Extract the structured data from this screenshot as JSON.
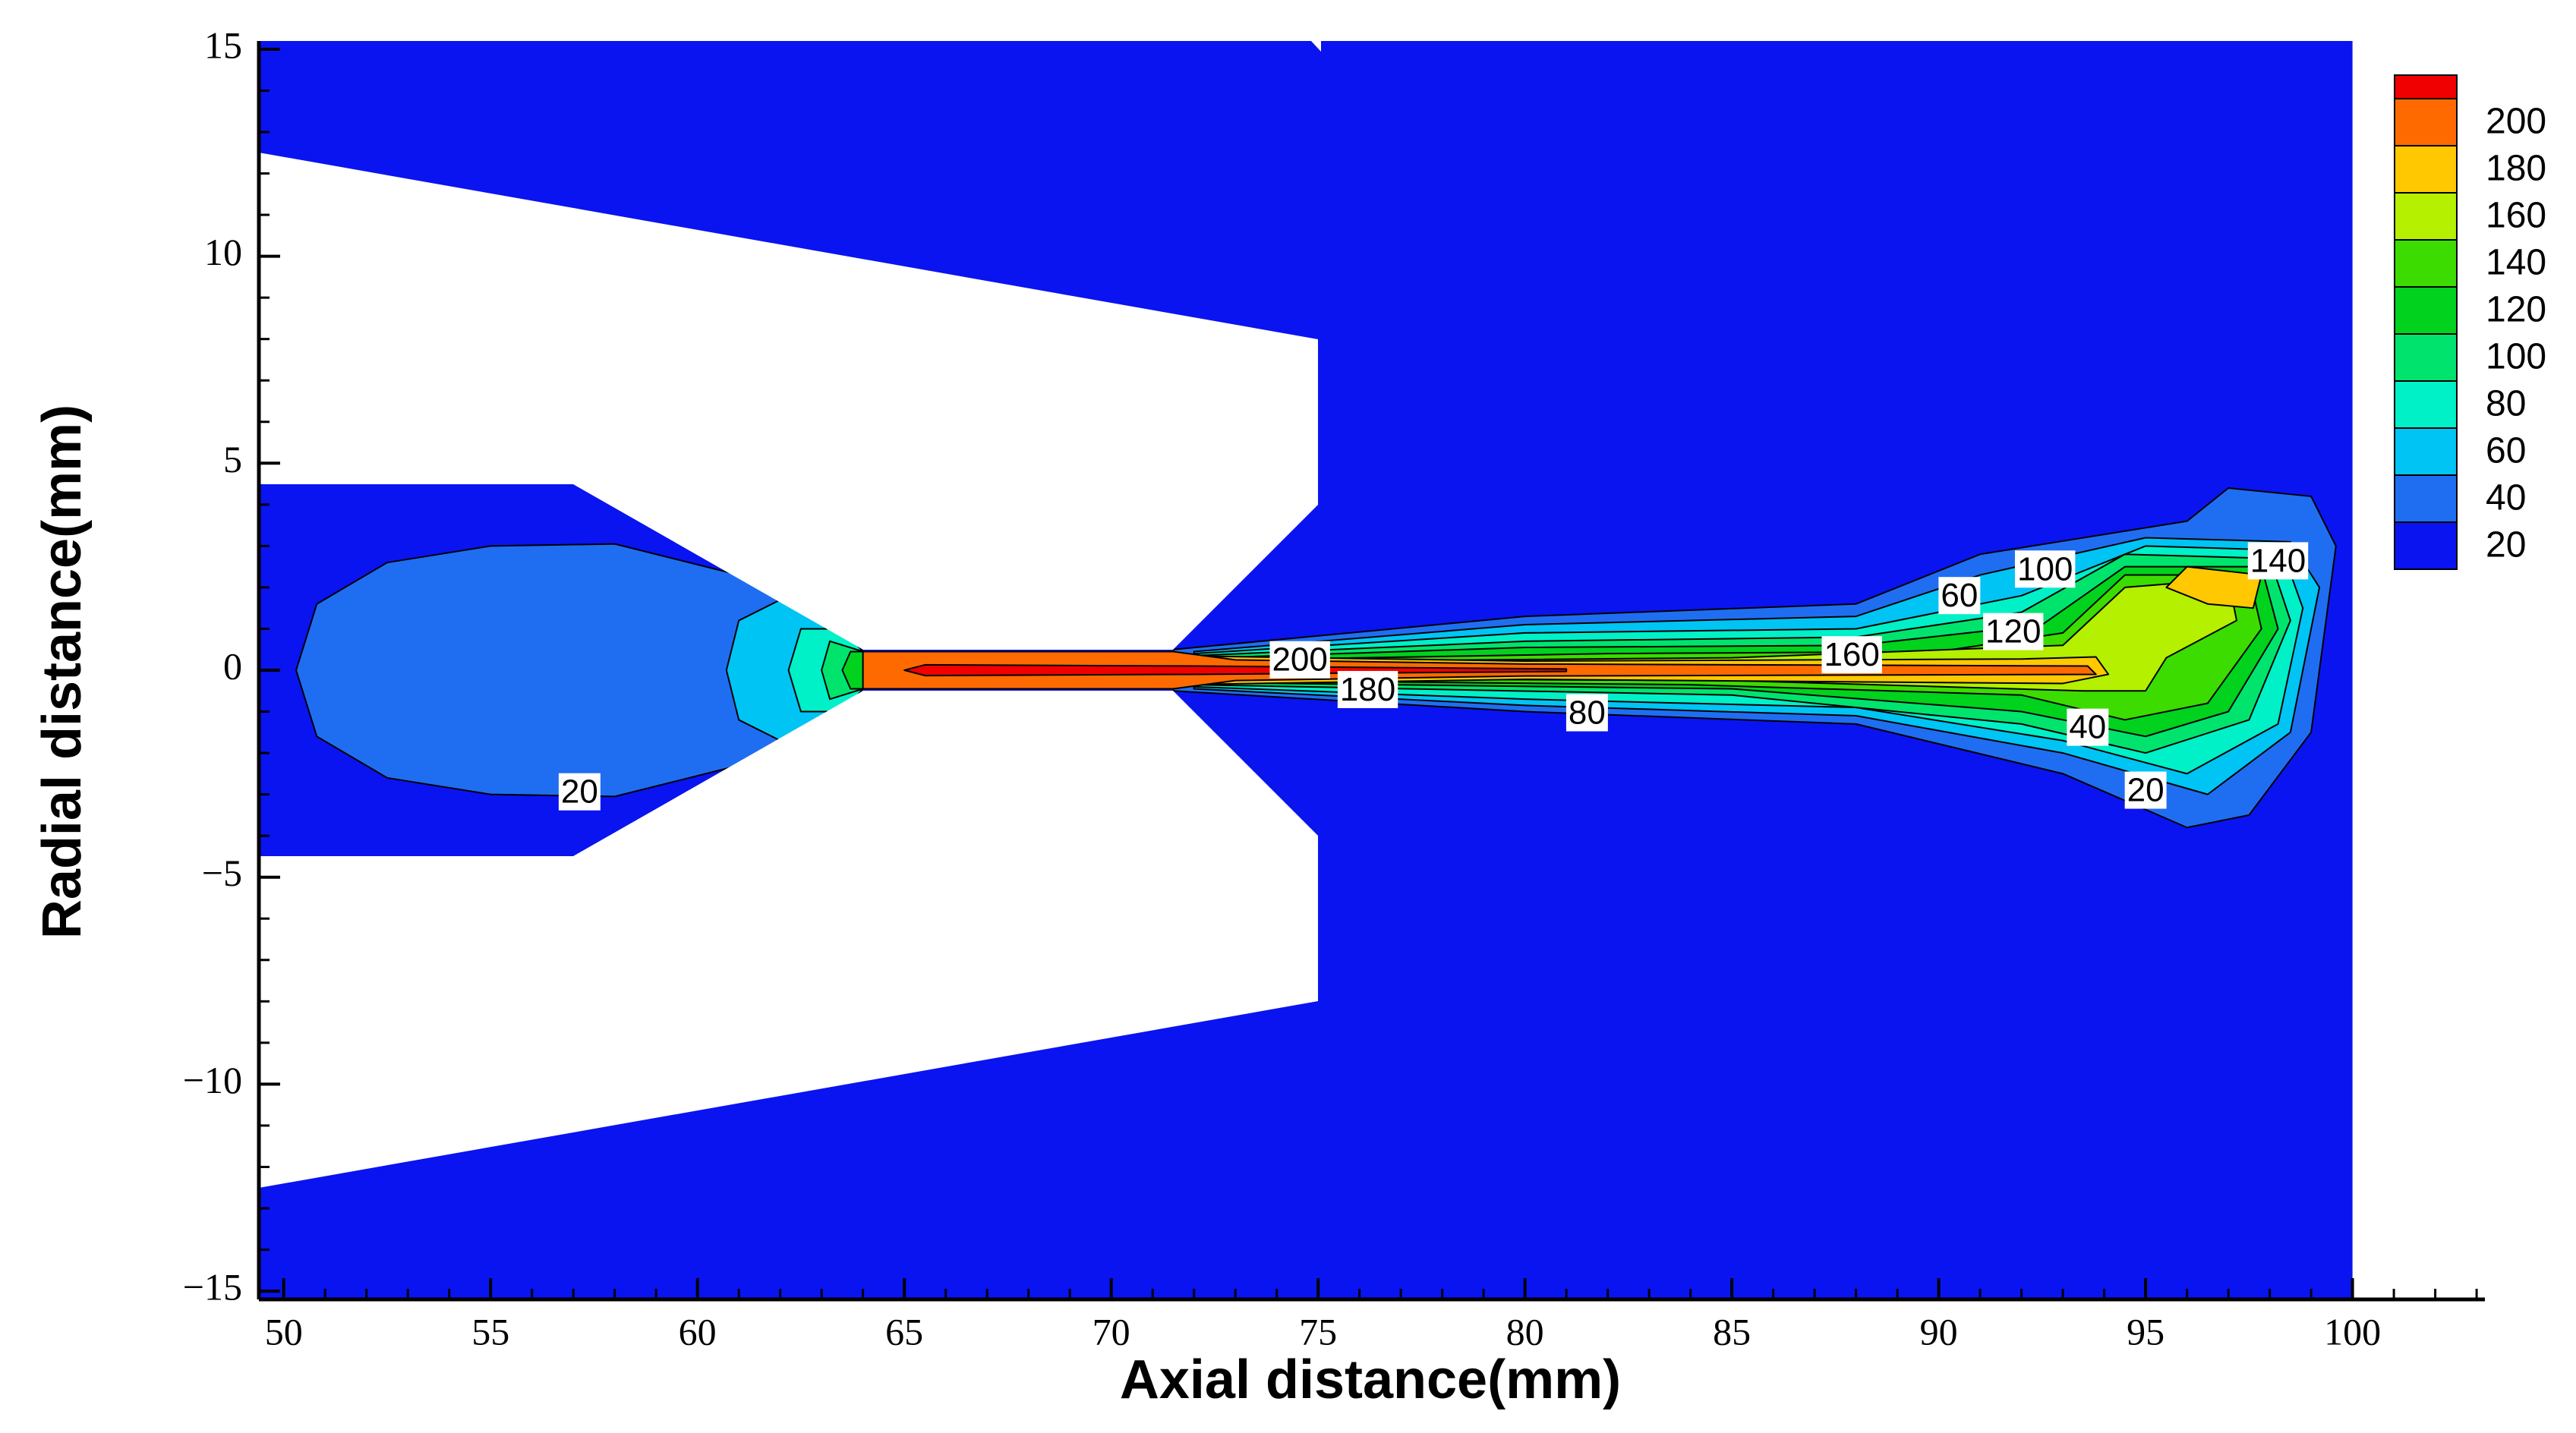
{
  "chart_data": {
    "type": "contour",
    "x_label": "Axial distance(mm)",
    "y_label": "Radial distance(mm)",
    "xlim": [
      49.4,
      103.2
    ],
    "ylim": [
      -15.2,
      15.2
    ],
    "xticks": [
      50,
      55,
      60,
      65,
      70,
      75,
      80,
      85,
      90,
      95,
      100
    ],
    "yticks": [
      {
        "value": -15,
        "label": "−15"
      },
      {
        "value": -10,
        "label": "−10"
      },
      {
        "value": -5,
        "label": "−5"
      },
      0,
      5,
      10,
      15
    ],
    "colorbar": {
      "levels": [
        20,
        40,
        60,
        80,
        100,
        120,
        140,
        160,
        180,
        200,
        null
      ],
      "colors": [
        "#0a14f0",
        "#1f6ef2",
        "#00c4f4",
        "#00f0c8",
        "#00e46e",
        "#00d21e",
        "#3cdc00",
        "#b4f000",
        "#ffc800",
        "#ff6a00",
        "#f00000"
      ]
    },
    "regions": [
      {
        "level": 20,
        "points": [
          [
            49.4,
            -15.2
          ],
          [
            100,
            -15.2
          ],
          [
            100,
            15.2
          ],
          [
            49.4,
            15.2
          ]
        ]
      },
      {
        "level": 40,
        "points": [
          [
            50.3,
            0
          ],
          [
            50.8,
            1.6
          ],
          [
            52.5,
            2.6
          ],
          [
            55,
            3
          ],
          [
            58,
            3.05
          ],
          [
            61,
            2.3
          ],
          [
            63,
            1
          ],
          [
            64,
            0.45
          ],
          [
            64,
            -0.45
          ],
          [
            63,
            -1
          ],
          [
            61,
            -2.3
          ],
          [
            58,
            -3.05
          ],
          [
            55,
            -3
          ],
          [
            52.5,
            -2.6
          ],
          [
            50.8,
            -1.6
          ]
        ]
      },
      {
        "level": 60,
        "points": [
          [
            60.7,
            0
          ],
          [
            61,
            1.2
          ],
          [
            62,
            1.7
          ],
          [
            63.2,
            1.1
          ],
          [
            64,
            0.45
          ],
          [
            64,
            -0.45
          ],
          [
            63.2,
            -1.1
          ],
          [
            62,
            -1.7
          ],
          [
            61,
            -1.2
          ]
        ]
      },
      {
        "level": 80,
        "points": [
          [
            62.2,
            0
          ],
          [
            62.5,
            1
          ],
          [
            63.5,
            1
          ],
          [
            64,
            0.45
          ],
          [
            64,
            -0.45
          ],
          [
            63.5,
            -1
          ],
          [
            62.5,
            -1
          ]
        ]
      },
      {
        "level": 100,
        "points": [
          [
            63,
            0
          ],
          [
            63.2,
            0.7
          ],
          [
            64,
            0.45
          ],
          [
            64,
            -0.45
          ],
          [
            63.2,
            -0.7
          ]
        ]
      },
      {
        "level": 120,
        "points": [
          [
            63.5,
            0
          ],
          [
            63.7,
            0.45
          ],
          [
            64,
            0.45
          ],
          [
            64,
            -0.45
          ],
          [
            63.7,
            -0.45
          ]
        ]
      },
      {
        "level": 40,
        "points": [
          [
            71.5,
            0.5
          ],
          [
            80,
            1.3
          ],
          [
            88,
            1.6
          ],
          [
            91,
            2.8
          ],
          [
            96,
            3.6
          ],
          [
            97,
            4.4
          ],
          [
            99,
            4.2
          ],
          [
            99.6,
            3
          ],
          [
            99,
            -1.5
          ],
          [
            97.5,
            -3.5
          ],
          [
            96,
            -3.8
          ],
          [
            93,
            -2.5
          ],
          [
            88,
            -1.3
          ],
          [
            80,
            -1.0
          ],
          [
            71.5,
            -0.5
          ]
        ]
      },
      {
        "level": 60,
        "points": [
          [
            72,
            0.45
          ],
          [
            80,
            1.1
          ],
          [
            88,
            1.3
          ],
          [
            91,
            2.3
          ],
          [
            95,
            3.2
          ],
          [
            98.5,
            3.1
          ],
          [
            99.2,
            2
          ],
          [
            98.5,
            -1.5
          ],
          [
            96.5,
            -3
          ],
          [
            93,
            -2
          ],
          [
            88,
            -1.1
          ],
          [
            80,
            -0.85
          ],
          [
            72,
            -0.45
          ]
        ]
      },
      {
        "level": 80,
        "points": [
          [
            72,
            0.4
          ],
          [
            80,
            0.9
          ],
          [
            88,
            1.0
          ],
          [
            92,
            1.8
          ],
          [
            95,
            3
          ],
          [
            98.3,
            2.9
          ],
          [
            98.8,
            1.5
          ],
          [
            98.2,
            -1.3
          ],
          [
            96,
            -2.5
          ],
          [
            93,
            -1.7
          ],
          [
            88,
            -0.9
          ],
          [
            80,
            -0.7
          ],
          [
            72,
            -0.4
          ]
        ]
      },
      {
        "level": 100,
        "points": [
          [
            72,
            0.35
          ],
          [
            80,
            0.7
          ],
          [
            88,
            0.8
          ],
          [
            92,
            1.4
          ],
          [
            94.5,
            2.8
          ],
          [
            98,
            2.7
          ],
          [
            98.5,
            1.2
          ],
          [
            97.5,
            -1.2
          ],
          [
            95,
            -2
          ],
          [
            92,
            -1.3
          ],
          [
            85,
            -0.6
          ],
          [
            72,
            -0.35
          ]
        ]
      },
      {
        "level": 120,
        "points": [
          [
            72.5,
            0.3
          ],
          [
            80,
            0.55
          ],
          [
            88,
            0.6
          ],
          [
            92.5,
            1.1
          ],
          [
            94.5,
            2.5
          ],
          [
            97.8,
            2.5
          ],
          [
            98.2,
            1
          ],
          [
            97,
            -1
          ],
          [
            95,
            -1.6
          ],
          [
            92,
            -1
          ],
          [
            85,
            -0.45
          ],
          [
            72.5,
            -0.3
          ]
        ]
      },
      {
        "level": 140,
        "points": [
          [
            73,
            0.25
          ],
          [
            82,
            0.4
          ],
          [
            90,
            0.45
          ],
          [
            93,
            0.9
          ],
          [
            94.5,
            2.3
          ],
          [
            97.5,
            2.3
          ],
          [
            97.8,
            1
          ],
          [
            96.5,
            -0.8
          ],
          [
            94.5,
            -1.2
          ],
          [
            92,
            -0.6
          ],
          [
            84,
            -0.35
          ],
          [
            73,
            -0.25
          ]
        ]
      },
      {
        "level": 160,
        "points": [
          [
            73,
            0.2
          ],
          [
            85,
            0.3
          ],
          [
            93,
            0.6
          ],
          [
            94.5,
            2
          ],
          [
            97,
            2.2
          ],
          [
            97.2,
            1.2
          ],
          [
            95.5,
            0.3
          ],
          [
            95,
            -0.5
          ],
          [
            93.5,
            -0.5
          ],
          [
            85,
            -0.25
          ],
          [
            73,
            -0.2
          ]
        ]
      },
      {
        "level": 180,
        "points": [
          [
            95.5,
            2
          ],
          [
            96,
            2.5
          ],
          [
            97.8,
            2.3
          ],
          [
            97.6,
            1.5
          ],
          [
            96.5,
            1.6
          ]
        ]
      },
      {
        "level": 180,
        "points": [
          [
            71.5,
            0.35
          ],
          [
            80,
            0.22
          ],
          [
            92,
            0.27
          ],
          [
            93.8,
            0.32
          ],
          [
            94.1,
            -0.1
          ],
          [
            93,
            -0.32
          ],
          [
            80,
            -0.22
          ],
          [
            71.5,
            -0.35
          ]
        ]
      },
      {
        "level": 200,
        "points": [
          [
            64,
            0.45
          ],
          [
            71.5,
            0.45
          ],
          [
            73,
            0.25
          ],
          [
            80,
            0.15
          ],
          [
            93.6,
            0.1
          ],
          [
            93.8,
            -0.1
          ],
          [
            80,
            -0.14
          ],
          [
            73,
            -0.25
          ],
          [
            71.5,
            -0.45
          ],
          [
            64,
            -0.45
          ]
        ]
      },
      {
        "level": null,
        "points": [
          [
            65,
            0
          ],
          [
            65.5,
            0.13
          ],
          [
            72,
            0.1
          ],
          [
            81,
            0.03
          ],
          [
            81,
            -0.03
          ],
          [
            72,
            -0.1
          ],
          [
            65.5,
            -0.13
          ]
        ]
      }
    ],
    "contour_labels": [
      {
        "value": 20,
        "x": 57.15,
        "y": -2.99
      },
      {
        "value": 200,
        "x": 74.56,
        "y": 0.2
      },
      {
        "value": 180,
        "x": 76.2,
        "y": -0.52
      },
      {
        "value": 160,
        "x": 87.9,
        "y": 0.32
      },
      {
        "value": 80,
        "x": 81.5,
        "y": -1.08
      },
      {
        "value": 60,
        "x": 90.5,
        "y": 1.75
      },
      {
        "value": 100,
        "x": 92.57,
        "y": 2.39
      },
      {
        "value": 120,
        "x": 91.8,
        "y": 0.88
      },
      {
        "value": 140,
        "x": 98.2,
        "y": 2.59
      },
      {
        "value": 40,
        "x": 93.6,
        "y": -1.43
      },
      {
        "value": 20,
        "x": 95.0,
        "y": -2.95
      }
    ]
  }
}
